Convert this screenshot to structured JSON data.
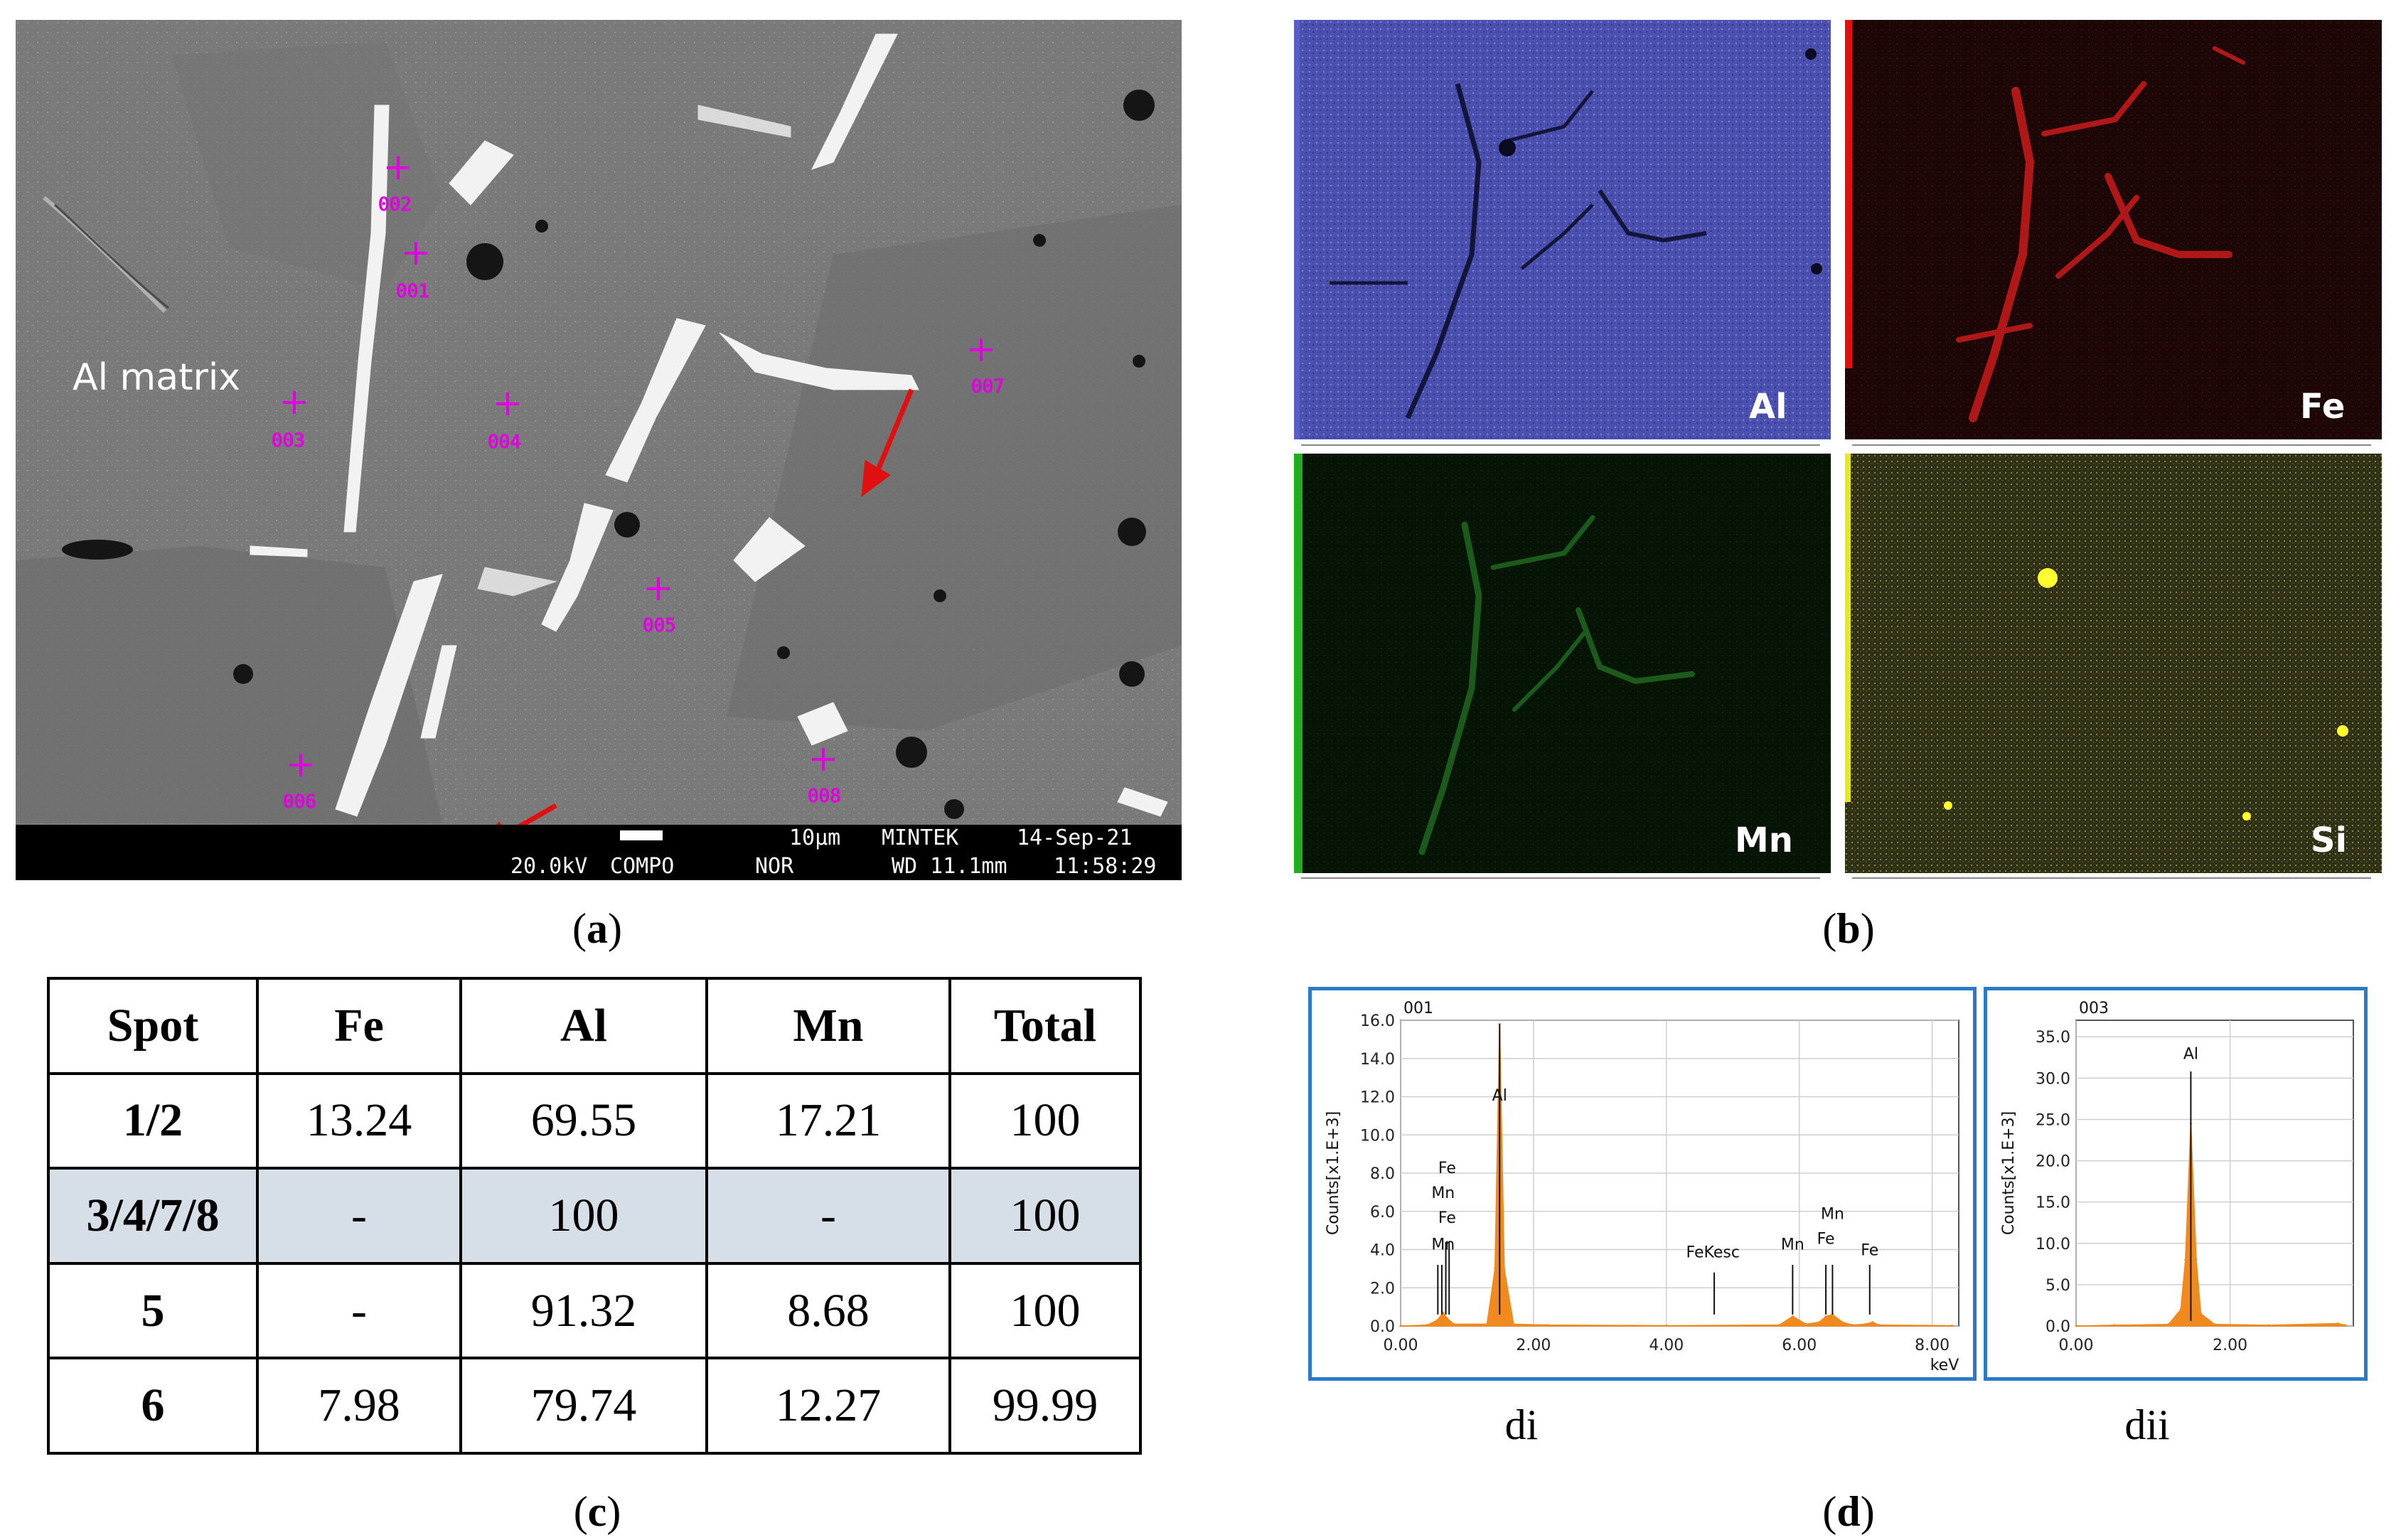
{
  "panel_a": {
    "caption_letter": "a",
    "matrix_label": "Al matrix",
    "spots": [
      "001",
      "002",
      "003",
      "004",
      "005",
      "006",
      "007",
      "008"
    ],
    "info_bar": {
      "scale": "10μm",
      "lab": "MINTEK",
      "date": "14-Sep-21",
      "voltage": "20.0kV",
      "mode": "COMPO",
      "nor": "NOR",
      "wd": "WD 11.1mm",
      "time": "11:58:29"
    }
  },
  "panel_b": {
    "caption_letter": "b",
    "maps": [
      {
        "element": "Al",
        "color": "#5a5fc8"
      },
      {
        "element": "Fe",
        "color": "#c0161c"
      },
      {
        "element": "Mn",
        "color": "#1f7a1f"
      },
      {
        "element": "Si",
        "color": "#d8d820"
      }
    ]
  },
  "panel_c": {
    "caption_letter": "c",
    "table": {
      "headers": [
        "Spot",
        "Fe",
        "Al",
        "Mn",
        "Total"
      ],
      "rows": [
        [
          "1/2",
          "13.24",
          "69.55",
          "17.21",
          "100"
        ],
        [
          "3/4/7/8",
          "-",
          "100",
          "-",
          "100"
        ],
        [
          "5",
          "-",
          "91.32",
          "8.68",
          "100"
        ],
        [
          "6",
          "7.98",
          "79.74",
          "12.27",
          "99.99"
        ]
      ]
    }
  },
  "panel_d": {
    "caption_letter": "d",
    "sub_captions": [
      "di",
      "dii"
    ],
    "chart_data": [
      {
        "type": "area",
        "title": "001",
        "ylabel": "Counts[x1.E+3]",
        "xlabel": "keV",
        "xlim": [
          0,
          8.4
        ],
        "ylim": [
          0,
          16.0
        ],
        "xticks": [
          "0.00",
          "2.00",
          "4.00",
          "6.00",
          "8.00"
        ],
        "yticks": [
          "0.0",
          "2.0",
          "4.0",
          "6.0",
          "8.0",
          "10.0",
          "12.0",
          "14.0",
          "16.0"
        ],
        "x": [
          0.0,
          0.4,
          0.55,
          0.64,
          0.7,
          0.8,
          1.3,
          1.42,
          1.49,
          1.56,
          1.7,
          2.2,
          4.0,
          5.7,
          5.9,
          6.1,
          6.3,
          6.4,
          6.5,
          6.65,
          6.8,
          7.0,
          7.1,
          7.2,
          8.3
        ],
        "values": [
          0.0,
          0.05,
          0.3,
          0.7,
          0.4,
          0.1,
          0.1,
          3.0,
          15.8,
          3.0,
          0.1,
          0.05,
          0.02,
          0.05,
          0.5,
          0.1,
          0.2,
          0.5,
          0.6,
          0.2,
          0.05,
          0.1,
          0.2,
          0.05,
          0.02
        ],
        "peak_labels": [
          {
            "text": "Al",
            "x": 1.49,
            "y": 11.8
          },
          {
            "text": "Fe",
            "x": 0.7,
            "y": 8.0
          },
          {
            "text": "Mn",
            "x": 0.64,
            "y": 6.7
          },
          {
            "text": "Fe",
            "x": 0.7,
            "y": 5.4
          },
          {
            "text": "Mn",
            "x": 0.64,
            "y": 4.0
          },
          {
            "text": "FeKesc",
            "x": 4.7,
            "y": 3.6
          },
          {
            "text": "Mn",
            "x": 5.9,
            "y": 4.0
          },
          {
            "text": "Mn",
            "x": 6.5,
            "y": 5.6
          },
          {
            "text": "Fe",
            "x": 6.4,
            "y": 4.3
          },
          {
            "text": "Fe",
            "x": 7.06,
            "y": 3.7
          }
        ],
        "marker_lines": [
          {
            "x": 0.56,
            "y": 3.2
          },
          {
            "x": 0.62,
            "y": 3.2
          },
          {
            "x": 0.68,
            "y": 4.4
          },
          {
            "x": 0.73,
            "y": 4.4
          },
          {
            "x": 1.49,
            "y": 15.8
          },
          {
            "x": 4.72,
            "y": 2.8
          },
          {
            "x": 5.9,
            "y": 3.2
          },
          {
            "x": 6.4,
            "y": 3.2
          },
          {
            "x": 6.5,
            "y": 3.2
          },
          {
            "x": 7.06,
            "y": 3.2
          }
        ],
        "color": "#f08a1e"
      },
      {
        "type": "area",
        "title": "003",
        "ylabel": "Counts[x1.E+3]",
        "xlim": [
          0,
          3.6
        ],
        "ylim": [
          0,
          37.0
        ],
        "xticks": [
          "0.00",
          "2.00"
        ],
        "yticks": [
          "0.0",
          "5.0",
          "10.0",
          "15.0",
          "20.0",
          "25.0",
          "30.0",
          "35.0"
        ],
        "x": [
          0.0,
          0.5,
          1.2,
          1.36,
          1.42,
          1.49,
          1.56,
          1.62,
          1.8,
          2.5,
          3.4,
          3.5
        ],
        "values": [
          0.0,
          0.1,
          0.2,
          2.0,
          8.0,
          24.5,
          8.0,
          1.5,
          0.2,
          0.1,
          0.3,
          0.1
        ],
        "peak_labels": [
          {
            "text": "Al",
            "x": 1.49,
            "y": 32.3
          }
        ],
        "marker_lines": [
          {
            "x": 1.49,
            "y": 30.8
          }
        ],
        "color": "#f08a1e"
      }
    ]
  }
}
